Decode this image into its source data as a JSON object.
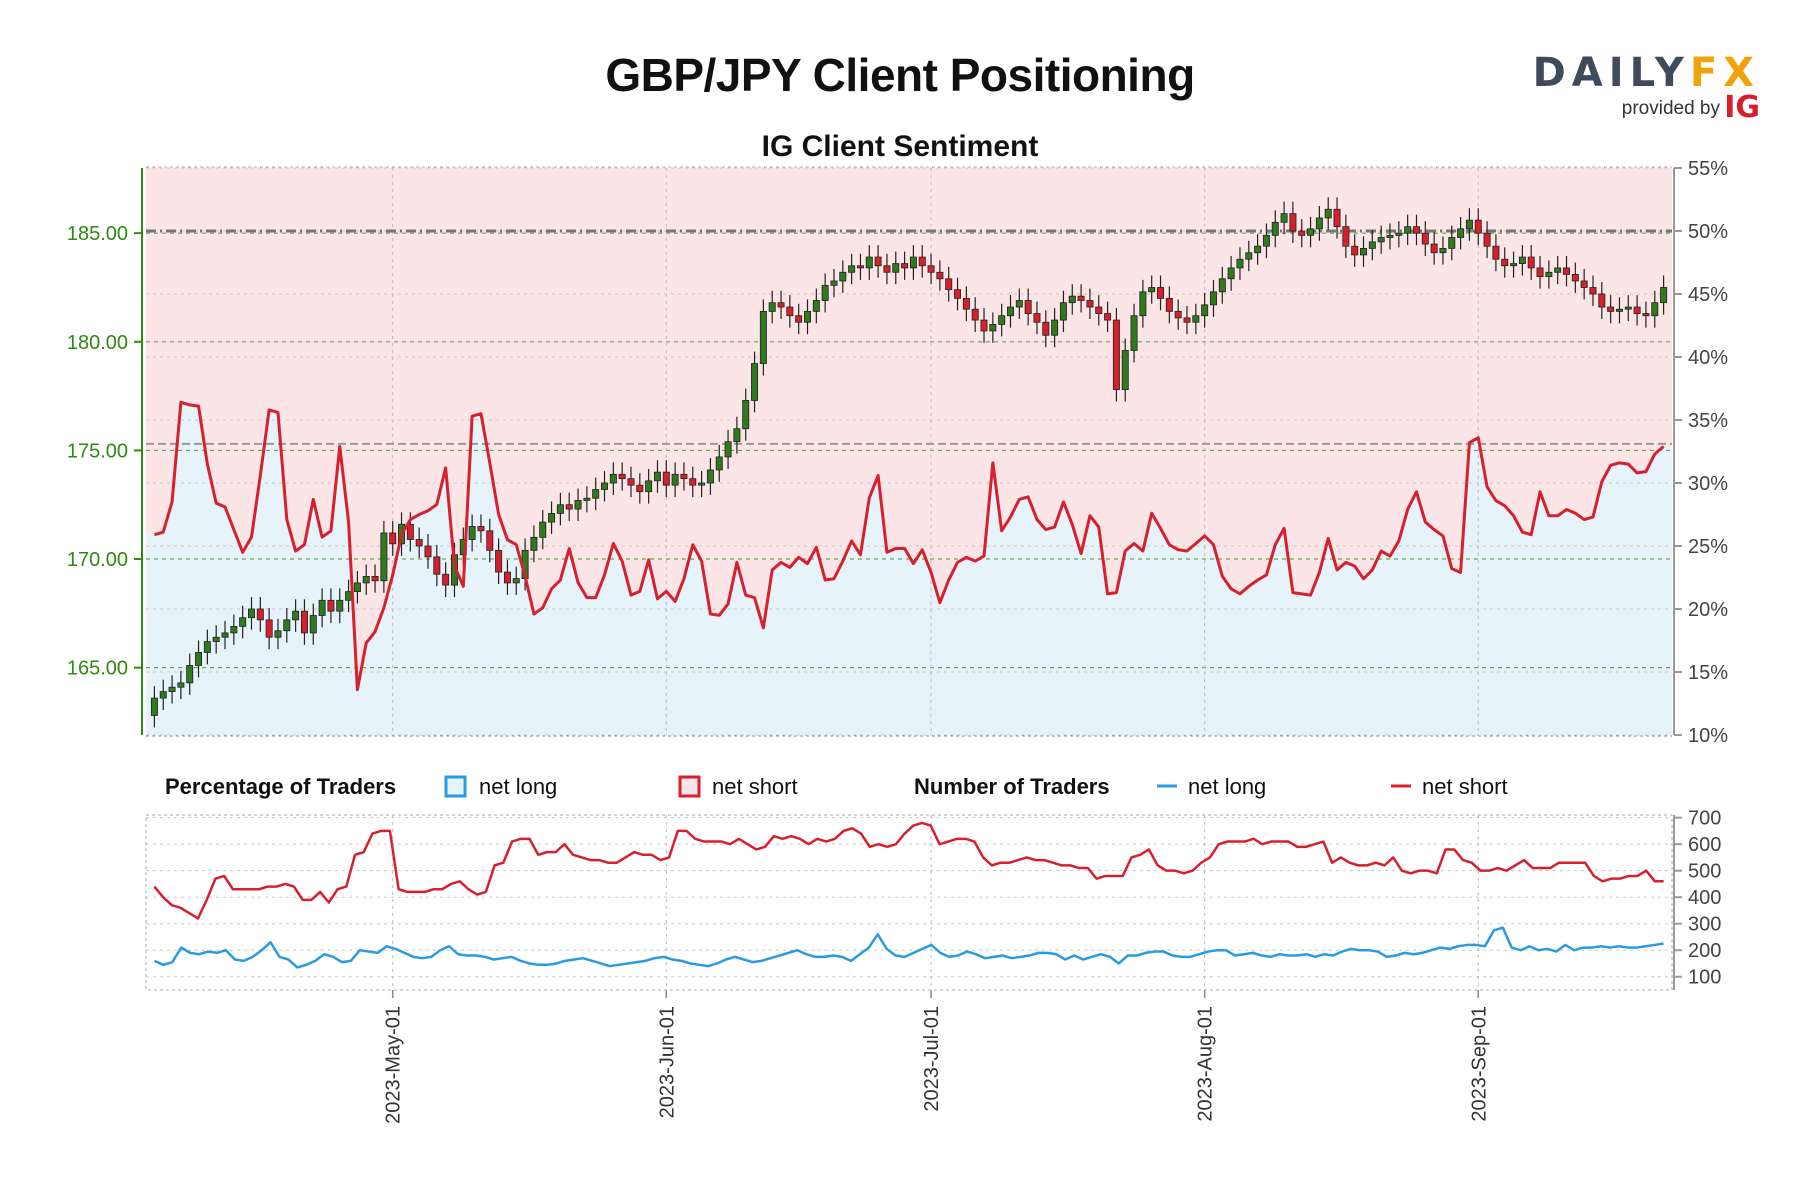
{
  "title": "GBP/JPY Client Positioning",
  "subtitle": "IG Client Sentiment",
  "logo": {
    "brand_a": "DAILY",
    "brand_b": "FX",
    "provided_by": "provided by",
    "ig": "IG"
  },
  "legend": {
    "pct_header": "Percentage of Traders",
    "pct_long": "net long",
    "pct_short": "net short",
    "num_header": "Number of Traders",
    "num_long": "net long",
    "num_short": "net short"
  },
  "colors": {
    "long_area": "#e6f3fb",
    "short_area": "#fbe5e6",
    "short_line": "#d6202e",
    "long_line": "#2a9be0",
    "bull": "#2f7a1e",
    "bear": "#d6202e",
    "price_axis": "#2e8a12"
  },
  "chart_data": [
    {
      "type": "candlestick",
      "title": "IG Client Sentiment",
      "price_axis": {
        "ticks": [
          "165.00",
          "170.00",
          "175.00",
          "180.00",
          "185.00"
        ],
        "ylim": [
          161.9,
          188.0
        ]
      },
      "pct_axis": {
        "ticks": [
          "10%",
          "15%",
          "20%",
          "25%",
          "30%",
          "35%",
          "40%",
          "45%",
          "50%",
          "55%"
        ],
        "ylim": [
          10,
          55
        ]
      },
      "date_ticks": [
        "2023-May-01",
        "2023-Jun-01",
        "2023-Jul-01",
        "2023-Aug-01",
        "2023-Sep-01"
      ],
      "date_ticks_index": [
        27,
        58,
        88,
        119,
        150
      ],
      "reference_lines": [
        185.1,
        175.3
      ],
      "grid": true,
      "price_close": [
        163.6,
        163.9,
        164.1,
        164.3,
        165.1,
        165.7,
        166.2,
        166.4,
        166.6,
        166.9,
        167.3,
        167.7,
        167.2,
        166.4,
        166.7,
        167.2,
        167.6,
        166.6,
        167.4,
        168.1,
        167.6,
        168.1,
        168.5,
        168.9,
        169.2,
        169.0,
        171.2,
        170.7,
        171.6,
        170.9,
        170.6,
        170.1,
        169.3,
        168.8,
        170.2,
        170.9,
        171.5,
        171.3,
        170.4,
        169.4,
        168.9,
        169.1,
        170.4,
        171.0,
        171.7,
        172.1,
        172.5,
        172.3,
        172.7,
        172.8,
        173.2,
        173.5,
        173.9,
        173.7,
        173.4,
        173.1,
        173.6,
        174.0,
        173.4,
        173.9,
        173.7,
        173.4,
        173.5,
        174.1,
        174.7,
        175.4,
        176.0,
        177.3,
        179.0,
        181.4,
        181.8,
        181.6,
        181.2,
        180.9,
        181.4,
        181.9,
        182.6,
        182.8,
        183.2,
        183.5,
        183.4,
        183.9,
        183.5,
        183.2,
        183.6,
        183.4,
        183.9,
        183.5,
        183.2,
        182.9,
        182.4,
        182.0,
        181.5,
        181.0,
        180.5,
        180.8,
        181.2,
        181.6,
        181.9,
        181.3,
        180.9,
        180.3,
        181.0,
        181.8,
        182.1,
        181.9,
        181.6,
        181.3,
        181.0,
        177.8,
        179.6,
        181.2,
        182.3,
        182.5,
        182.0,
        181.4,
        181.1,
        180.9,
        181.2,
        181.7,
        182.3,
        182.9,
        183.4,
        183.8,
        184.1,
        184.4,
        184.9,
        185.5,
        185.9,
        185.1,
        184.9,
        185.2,
        185.7,
        186.1,
        185.3,
        184.4,
        184.0,
        184.3,
        184.6,
        184.8,
        184.9,
        185.0,
        185.3,
        185.0,
        184.5,
        184.1,
        184.3,
        184.8,
        185.2,
        185.6,
        185.0,
        184.4,
        183.8,
        183.5,
        183.6,
        183.9,
        183.4,
        183.0,
        183.2,
        183.4,
        183.1,
        182.8,
        182.5,
        182.2,
        181.6,
        181.4,
        181.5,
        181.6,
        181.3,
        181.2,
        181.8,
        182.5
      ],
      "percent_net_long": [
        25.9,
        26.1,
        28.5,
        36.4,
        36.2,
        36.1,
        31.5,
        28.4,
        28.1,
        26.3,
        24.5,
        25.7,
        30.6,
        35.8,
        35.6,
        27.1,
        24.6,
        25.1,
        28.7,
        25.7,
        26.2,
        32.9,
        26.9,
        13.6,
        17.3,
        18.2,
        20.1,
        22.7,
        25.9,
        27.1,
        27.5,
        27.8,
        28.3,
        31.2,
        23.4,
        21.8,
        35.3,
        35.5,
        31.6,
        27.5,
        25.5,
        25.1,
        22.6,
        19.6,
        20.1,
        21.6,
        22.3,
        24.8,
        22.1,
        20.9,
        20.9,
        22.7,
        25.2,
        23.8,
        21.1,
        21.4,
        23.9,
        20.8,
        21.4,
        20.6,
        22.4,
        25.1,
        23.8,
        19.6,
        19.5,
        20.4,
        23.7,
        21.1,
        20.9,
        18.5,
        23.1,
        23.7,
        23.3,
        24.1,
        23.6,
        24.9,
        22.3,
        22.4,
        23.8,
        25.4,
        24.3,
        28.8,
        30.6,
        24.5,
        24.8,
        24.8,
        23.6,
        24.7,
        22.9,
        20.5,
        22.3,
        23.7,
        24.1,
        23.8,
        24.2,
        31.6,
        26.2,
        27.3,
        28.7,
        28.9,
        27.1,
        26.3,
        26.5,
        28.5,
        26.7,
        24.4,
        27.4,
        26.5,
        21.2,
        21.3,
        24.6,
        25.2,
        24.6,
        27.6,
        26.4,
        25.1,
        24.7,
        24.6,
        25.2,
        25.8,
        25.1,
        22.6,
        21.6,
        21.2,
        21.8,
        22.3,
        22.7,
        25.1,
        26.4,
        21.3,
        21.2,
        21.1,
        22.9,
        25.6,
        23.1,
        23.7,
        23.4,
        22.4,
        23.1,
        24.6,
        24.2,
        25.4,
        27.9,
        29.3,
        26.9,
        26.3,
        25.8,
        23.2,
        22.9,
        33.2,
        33.6,
        29.7,
        28.6,
        28.2,
        27.4,
        26.1,
        25.9,
        29.3,
        27.4,
        27.4,
        27.9,
        27.6,
        27.1,
        27.3,
        30.1,
        31.4,
        31.6,
        31.5,
        30.8,
        30.9,
        32.3,
        32.9
      ]
    },
    {
      "type": "line",
      "title": "Number of Traders",
      "y_ticks": [
        "100",
        "200",
        "300",
        "400",
        "500",
        "600",
        "700"
      ],
      "ylim": [
        50,
        710
      ],
      "series": [
        {
          "name": "net long",
          "values": [
            160,
            145,
            155,
            210,
            190,
            185,
            195,
            190,
            200,
            165,
            160,
            175,
            200,
            230,
            175,
            165,
            135,
            145,
            160,
            185,
            175,
            155,
            160,
            200,
            195,
            190,
            215,
            205,
            190,
            175,
            170,
            175,
            200,
            215,
            185,
            180,
            180,
            175,
            165,
            170,
            175,
            160,
            150,
            145,
            145,
            150,
            160,
            165,
            170,
            160,
            150,
            140,
            145,
            150,
            155,
            160,
            170,
            175,
            165,
            160,
            150,
            145,
            140,
            150,
            165,
            175,
            165,
            155,
            160,
            170,
            180,
            190,
            200,
            185,
            175,
            175,
            180,
            175,
            160,
            185,
            210,
            260,
            205,
            180,
            175,
            190,
            205,
            220,
            190,
            175,
            180,
            195,
            185,
            170,
            175,
            180,
            170,
            175,
            180,
            190,
            190,
            185,
            165,
            180,
            165,
            175,
            185,
            175,
            150,
            180,
            180,
            190,
            195,
            195,
            180,
            175,
            175,
            185,
            195,
            200,
            200,
            180,
            185,
            190,
            180,
            175,
            185,
            180,
            180,
            185,
            175,
            185,
            180,
            195,
            205,
            200,
            200,
            195,
            175,
            180,
            190,
            185,
            190,
            200,
            210,
            205,
            215,
            220,
            220,
            215,
            275,
            285,
            210,
            200,
            215,
            200,
            205,
            195,
            220,
            200,
            210,
            210,
            215,
            210,
            215,
            210,
            210,
            215,
            220,
            225
          ]
        },
        {
          "name": "net short",
          "values": [
            440,
            400,
            370,
            360,
            340,
            320,
            390,
            470,
            480,
            430,
            430,
            430,
            430,
            440,
            440,
            450,
            440,
            390,
            390,
            420,
            380,
            430,
            440,
            560,
            570,
            640,
            650,
            650,
            430,
            420,
            420,
            420,
            430,
            430,
            450,
            460,
            430,
            410,
            420,
            520,
            530,
            610,
            620,
            620,
            560,
            570,
            570,
            600,
            560,
            550,
            540,
            540,
            530,
            530,
            550,
            570,
            560,
            560,
            540,
            550,
            650,
            650,
            620,
            610,
            610,
            610,
            600,
            620,
            600,
            580,
            590,
            630,
            620,
            630,
            620,
            600,
            620,
            610,
            620,
            650,
            660,
            640,
            590,
            600,
            590,
            600,
            640,
            670,
            680,
            670,
            600,
            610,
            620,
            620,
            610,
            550,
            520,
            530,
            530,
            540,
            550,
            540,
            540,
            530,
            520,
            520,
            510,
            510,
            470,
            480,
            480,
            480,
            550,
            560,
            580,
            520,
            500,
            500,
            490,
            500,
            530,
            550,
            600,
            610,
            610,
            610,
            620,
            600,
            610,
            610,
            610,
            590,
            590,
            600,
            610,
            530,
            550,
            530,
            520,
            520,
            530,
            520,
            550,
            500,
            490,
            500,
            500,
            490,
            580,
            580,
            540,
            530,
            500,
            500,
            510,
            500,
            520,
            540,
            510,
            510,
            510,
            530,
            530,
            530,
            530,
            480,
            460,
            470,
            470,
            480,
            480,
            500,
            460,
            460
          ]
        }
      ]
    }
  ]
}
